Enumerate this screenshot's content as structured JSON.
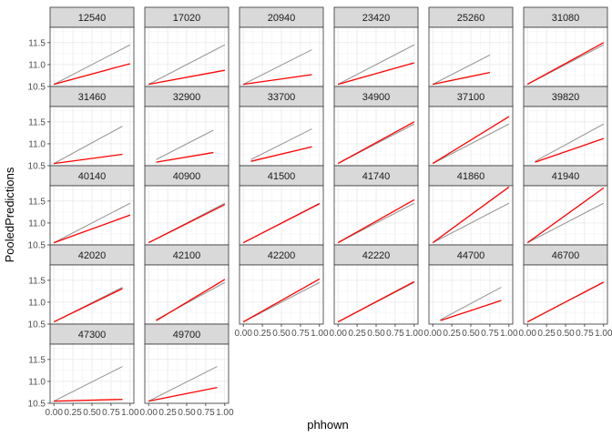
{
  "chart_data": {
    "type": "line",
    "xlabel": "phhown",
    "ylabel": "PooledPredictions",
    "xlim": [
      -0.05,
      1.05
    ],
    "ylim": [
      10.5,
      11.85
    ],
    "x_ticks": [
      0.0,
      0.25,
      0.5,
      0.75,
      1.0
    ],
    "x_tick_labels": [
      "0.00",
      "0.25",
      "0.50",
      "0.75",
      "1.00"
    ],
    "y_ticks": [
      10.5,
      11.0,
      11.5
    ],
    "y_tick_labels": [
      "10.5",
      "11.0",
      "11.5"
    ],
    "grid": true,
    "series_colors": {
      "pooled": "#999999",
      "group": "#ff0000"
    },
    "panels": [
      {
        "id": "12540",
        "pooled": {
          "x": [
            0.0,
            1.0
          ],
          "y": [
            10.55,
            11.45
          ]
        },
        "group": {
          "x": [
            0.0,
            1.0
          ],
          "y": [
            10.55,
            11.02
          ]
        }
      },
      {
        "id": "17020",
        "pooled": {
          "x": [
            0.0,
            1.0
          ],
          "y": [
            10.55,
            11.45
          ]
        },
        "group": {
          "x": [
            0.0,
            1.0
          ],
          "y": [
            10.55,
            10.87
          ]
        }
      },
      {
        "id": "20940",
        "pooled": {
          "x": [
            0.0,
            0.9
          ],
          "y": [
            10.55,
            11.34
          ]
        },
        "group": {
          "x": [
            0.0,
            0.9
          ],
          "y": [
            10.55,
            10.77
          ]
        }
      },
      {
        "id": "23420",
        "pooled": {
          "x": [
            0.0,
            1.0
          ],
          "y": [
            10.55,
            11.45
          ]
        },
        "group": {
          "x": [
            0.0,
            1.0
          ],
          "y": [
            10.55,
            11.04
          ]
        }
      },
      {
        "id": "25260",
        "pooled": {
          "x": [
            0.0,
            0.75
          ],
          "y": [
            10.55,
            11.22
          ]
        },
        "group": {
          "x": [
            0.0,
            0.75
          ],
          "y": [
            10.55,
            10.82
          ]
        }
      },
      {
        "id": "31080",
        "pooled": {
          "x": [
            0.0,
            1.0
          ],
          "y": [
            10.55,
            11.45
          ]
        },
        "group": {
          "x": [
            0.0,
            1.0
          ],
          "y": [
            10.55,
            11.5
          ]
        }
      },
      {
        "id": "31460",
        "pooled": {
          "x": [
            0.0,
            0.9
          ],
          "y": [
            10.55,
            11.4
          ]
        },
        "group": {
          "x": [
            0.0,
            0.9
          ],
          "y": [
            10.55,
            10.76
          ]
        }
      },
      {
        "id": "32900",
        "pooled": {
          "x": [
            0.1,
            0.85
          ],
          "y": [
            10.64,
            11.31
          ]
        },
        "group": {
          "x": [
            0.1,
            0.85
          ],
          "y": [
            10.58,
            10.8
          ]
        }
      },
      {
        "id": "33700",
        "pooled": {
          "x": [
            0.1,
            0.9
          ],
          "y": [
            10.64,
            11.34
          ]
        },
        "group": {
          "x": [
            0.1,
            0.9
          ],
          "y": [
            10.6,
            10.93
          ]
        }
      },
      {
        "id": "34900",
        "pooled": {
          "x": [
            0.0,
            1.0
          ],
          "y": [
            10.55,
            11.45
          ]
        },
        "group": {
          "x": [
            0.0,
            1.0
          ],
          "y": [
            10.55,
            11.5
          ]
        }
      },
      {
        "id": "37100",
        "pooled": {
          "x": [
            0.0,
            1.0
          ],
          "y": [
            10.55,
            11.45
          ]
        },
        "group": {
          "x": [
            0.0,
            1.0
          ],
          "y": [
            10.55,
            11.62
          ]
        }
      },
      {
        "id": "39820",
        "pooled": {
          "x": [
            0.1,
            1.0
          ],
          "y": [
            10.6,
            11.45
          ]
        },
        "group": {
          "x": [
            0.1,
            1.0
          ],
          "y": [
            10.58,
            11.12
          ]
        }
      },
      {
        "id": "40140",
        "pooled": {
          "x": [
            0.0,
            1.0
          ],
          "y": [
            10.55,
            11.45
          ]
        },
        "group": {
          "x": [
            0.0,
            1.0
          ],
          "y": [
            10.55,
            11.18
          ]
        }
      },
      {
        "id": "40900",
        "pooled": {
          "x": [
            0.0,
            1.0
          ],
          "y": [
            10.55,
            11.45
          ]
        },
        "group": {
          "x": [
            0.0,
            1.0
          ],
          "y": [
            10.55,
            11.42
          ]
        }
      },
      {
        "id": "41500",
        "pooled": {
          "x": [
            0.0,
            1.0
          ],
          "y": [
            10.55,
            11.45
          ]
        },
        "group": {
          "x": [
            0.0,
            1.0
          ],
          "y": [
            10.55,
            11.44
          ]
        }
      },
      {
        "id": "41740",
        "pooled": {
          "x": [
            0.0,
            1.0
          ],
          "y": [
            10.55,
            11.45
          ]
        },
        "group": {
          "x": [
            0.0,
            1.0
          ],
          "y": [
            10.55,
            11.53
          ]
        }
      },
      {
        "id": "41860",
        "pooled": {
          "x": [
            0.0,
            1.0
          ],
          "y": [
            10.55,
            11.45
          ]
        },
        "group": {
          "x": [
            0.0,
            1.0
          ],
          "y": [
            10.55,
            11.82
          ]
        }
      },
      {
        "id": "41940",
        "pooled": {
          "x": [
            0.0,
            1.0
          ],
          "y": [
            10.55,
            11.45
          ]
        },
        "group": {
          "x": [
            0.0,
            1.0
          ],
          "y": [
            10.55,
            11.8
          ]
        }
      },
      {
        "id": "42020",
        "pooled": {
          "x": [
            0.0,
            0.9
          ],
          "y": [
            10.55,
            11.34
          ]
        },
        "group": {
          "x": [
            0.0,
            0.9
          ],
          "y": [
            10.55,
            11.31
          ]
        }
      },
      {
        "id": "42100",
        "pooled": {
          "x": [
            0.1,
            1.0
          ],
          "y": [
            10.6,
            11.45
          ]
        },
        "group": {
          "x": [
            0.1,
            1.0
          ],
          "y": [
            10.58,
            11.52
          ]
        }
      },
      {
        "id": "42200",
        "pooled": {
          "x": [
            0.0,
            1.0
          ],
          "y": [
            10.55,
            11.45
          ]
        },
        "group": {
          "x": [
            0.0,
            1.0
          ],
          "y": [
            10.55,
            11.53
          ]
        }
      },
      {
        "id": "42220",
        "pooled": {
          "x": [
            0.0,
            1.0
          ],
          "y": [
            10.55,
            11.45
          ]
        },
        "group": {
          "x": [
            0.0,
            1.0
          ],
          "y": [
            10.55,
            11.47
          ]
        }
      },
      {
        "id": "44700",
        "pooled": {
          "x": [
            0.1,
            0.9
          ],
          "y": [
            10.6,
            11.34
          ]
        },
        "group": {
          "x": [
            0.1,
            0.9
          ],
          "y": [
            10.58,
            11.04
          ]
        }
      },
      {
        "id": "46700",
        "pooled": {
          "x": [
            0.0,
            1.0
          ],
          "y": [
            10.55,
            11.45
          ]
        },
        "group": {
          "x": [
            0.0,
            1.0
          ],
          "y": [
            10.55,
            11.46
          ]
        }
      },
      {
        "id": "47300",
        "pooled": {
          "x": [
            0.0,
            0.9
          ],
          "y": [
            10.55,
            11.34
          ]
        },
        "group": {
          "x": [
            0.0,
            0.9
          ],
          "y": [
            10.55,
            10.59
          ]
        }
      },
      {
        "id": "49700",
        "pooled": {
          "x": [
            0.0,
            0.9
          ],
          "y": [
            10.55,
            11.34
          ]
        },
        "group": {
          "x": [
            0.0,
            0.9
          ],
          "y": [
            10.55,
            10.86
          ]
        }
      }
    ]
  }
}
